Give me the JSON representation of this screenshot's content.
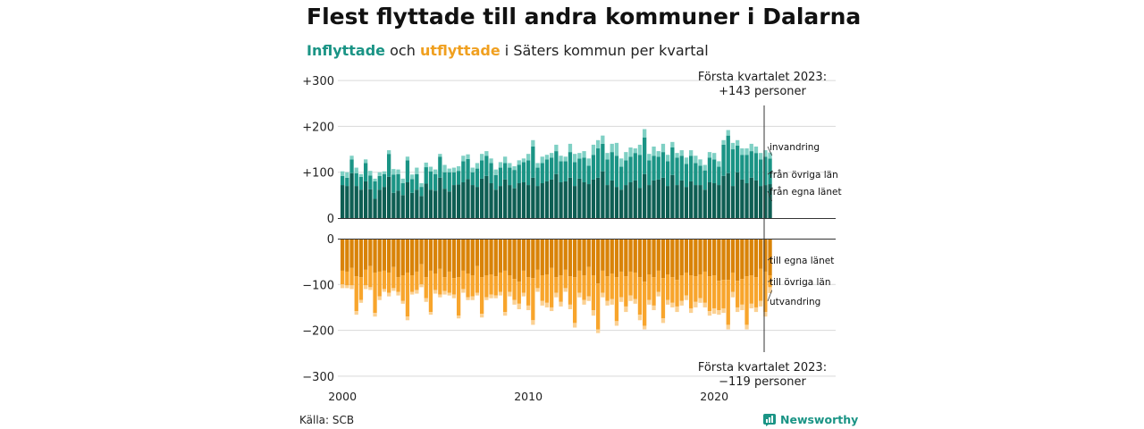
{
  "title": "Flest flyttade till andra kommuner i Dalarna",
  "subtitle": {
    "in_word": "Inflyttade",
    "and_word": "och",
    "out_word": "utflyttade",
    "rest": "i Säters kommun per kvartal"
  },
  "source": "Källa: SCB",
  "brand": "Newsworthy",
  "annotations": {
    "top_line1": "Första kvartalet 2023:",
    "top_line2": "+143 personer",
    "bottom_line1": "Första kvartalet 2023:",
    "bottom_line2": "−119 personer"
  },
  "colors": {
    "in_egna": "#0e5e53",
    "in_ovriga": "#1a9485",
    "in_invandring": "#7fd0c4",
    "out_egna": "#d98308",
    "out_ovriga": "#f8a52c",
    "out_utvandring": "#fbd193",
    "grid": "#d9d9d9",
    "axis": "#333333"
  },
  "chart_data": {
    "type": "bar",
    "stacked": true,
    "title": "Flest flyttade till andra kommuner i Dalarna",
    "subtitle": "Inflyttade och utflyttade i Säters kommun per kvartal",
    "x_axis": {
      "ticks": [
        "2000",
        "2010",
        "2020"
      ],
      "first_period": "2000 Q1",
      "last_period": "2023 Q1"
    },
    "y_axis": {
      "ticks_top": [
        "+300",
        "+200",
        "+100",
        "0"
      ],
      "ticks_bottom": [
        "0",
        "−100",
        "−200",
        "−300"
      ],
      "range_top": [
        0,
        300
      ],
      "range_bottom": [
        -300,
        0
      ]
    },
    "legend_inflyttade": [
      "invandring",
      "från övriga län",
      "från egna länet"
    ],
    "legend_utflyttade": [
      "till egna länet",
      "till övriga län",
      "utvandring"
    ],
    "inflyttade": {
      "egna_lanet": [
        72,
        70,
        98,
        70,
        62,
        80,
        63,
        42,
        62,
        68,
        90,
        55,
        60,
        50,
        78,
        55,
        62,
        48,
        75,
        62,
        60,
        88,
        64,
        58,
        72,
        73,
        78,
        85,
        72,
        68,
        86,
        92,
        76,
        62,
        70,
        84,
        72,
        65,
        76,
        78,
        72,
        88,
        70,
        76,
        80,
        84,
        96,
        78,
        80,
        88,
        70,
        86,
        78,
        74,
        84,
        88,
        102,
        72,
        82,
        68,
        62,
        72,
        78,
        82,
        66,
        96,
        72,
        82,
        84,
        88,
        70,
        94,
        72,
        82,
        68,
        80,
        72,
        72,
        62,
        78,
        76,
        72,
        92,
        98,
        70,
        100,
        84,
        76,
        88,
        82,
        70,
        72,
        74
      ],
      "ovriga_lan": [
        20,
        18,
        30,
        28,
        28,
        40,
        30,
        38,
        30,
        28,
        50,
        40,
        36,
        26,
        48,
        30,
        34,
        20,
        36,
        40,
        36,
        46,
        36,
        42,
        28,
        30,
        46,
        44,
        28,
        40,
        40,
        44,
        44,
        32,
        40,
        36,
        38,
        40,
        40,
        44,
        54,
        68,
        40,
        44,
        48,
        48,
        50,
        46,
        44,
        56,
        52,
        44,
        54,
        40,
        54,
        64,
        60,
        56,
        62,
        68,
        50,
        54,
        56,
        60,
        72,
        80,
        54,
        54,
        50,
        56,
        54,
        60,
        60,
        54,
        50,
        56,
        48,
        42,
        42,
        54,
        52,
        40,
        68,
        82,
        80,
        58,
        54,
        62,
        58,
        60,
        58,
        62,
        56
      ],
      "invandring": [
        10,
        12,
        8,
        12,
        6,
        8,
        10,
        6,
        8,
        6,
        8,
        12,
        10,
        10,
        8,
        10,
        14,
        8,
        10,
        10,
        10,
        6,
        16,
        8,
        10,
        10,
        12,
        10,
        10,
        12,
        14,
        10,
        10,
        12,
        12,
        14,
        10,
        8,
        10,
        8,
        14,
        14,
        10,
        14,
        10,
        10,
        14,
        12,
        10,
        18,
        18,
        12,
        14,
        16,
        22,
        18,
        18,
        14,
        18,
        28,
        18,
        18,
        20,
        10,
        22,
        18,
        14,
        20,
        12,
        18,
        14,
        12,
        10,
        12,
        14,
        12,
        16,
        14,
        12,
        12,
        14,
        12,
        10,
        12,
        14,
        12,
        14,
        14,
        16,
        14,
        14,
        14,
        13
      ]
    },
    "utflyttade": {
      "egna_lanet": [
        -70,
        -72,
        -64,
        -82,
        -84,
        -68,
        -60,
        -74,
        -72,
        -70,
        -74,
        -62,
        -84,
        -80,
        -74,
        -80,
        -72,
        -56,
        -84,
        -70,
        -76,
        -66,
        -84,
        -72,
        -86,
        -84,
        -70,
        -76,
        -80,
        -60,
        -84,
        -80,
        -78,
        -82,
        -74,
        -70,
        -80,
        -88,
        -94,
        -70,
        -84,
        -86,
        -68,
        -80,
        -78,
        -64,
        -84,
        -80,
        -68,
        -82,
        -84,
        -70,
        -80,
        -62,
        -80,
        -98,
        -70,
        -82,
        -76,
        -84,
        -72,
        -82,
        -72,
        -74,
        -84,
        -94,
        -78,
        -84,
        -70,
        -86,
        -78,
        -84,
        -90,
        -80,
        -74,
        -80,
        -82,
        -78,
        -72,
        -82,
        -80,
        -92,
        -90,
        -90,
        -74,
        -92,
        -88,
        -82,
        -80,
        -84,
        -66,
        -72,
        -80
      ],
      "ovriga_lan": [
        -30,
        -30,
        -38,
        -76,
        -50,
        -34,
        -46,
        -88,
        -54,
        -40,
        -44,
        -46,
        -32,
        -56,
        -96,
        -36,
        -40,
        -44,
        -46,
        -90,
        -36,
        -56,
        -30,
        -46,
        -36,
        -84,
        -40,
        -52,
        -46,
        -58,
        -80,
        -48,
        -44,
        -42,
        -42,
        -90,
        -36,
        -46,
        -48,
        -48,
        -62,
        -92,
        -40,
        -56,
        -62,
        -86,
        -34,
        -58,
        -40,
        -62,
        -100,
        -48,
        -54,
        -64,
        -76,
        -100,
        -48,
        -54,
        -56,
        -96,
        -56,
        -66,
        -52,
        -58,
        -82,
        -96,
        -56,
        -62,
        -46,
        -88,
        -56,
        -56,
        -58,
        -56,
        -50,
        -72,
        -56,
        -52,
        -68,
        -76,
        -72,
        -64,
        -62,
        -98,
        -42,
        -58,
        -56,
        -106,
        -62,
        -66,
        -70,
        -88,
        -26
      ],
      "utvandring": [
        -8,
        -6,
        -8,
        -8,
        -6,
        -8,
        -6,
        -8,
        -8,
        -6,
        -8,
        -6,
        -8,
        -6,
        -8,
        -6,
        -8,
        -6,
        -8,
        -6,
        -8,
        -6,
        -8,
        -6,
        -8,
        -6,
        -8,
        -6,
        -8,
        -6,
        -8,
        -6,
        -8,
        -6,
        -8,
        -8,
        -10,
        -10,
        -12,
        -8,
        -10,
        -10,
        -8,
        -10,
        -10,
        -8,
        -10,
        -10,
        -8,
        -10,
        -10,
        -10,
        -10,
        -10,
        -12,
        -8,
        -10,
        -10,
        -12,
        -10,
        -10,
        -12,
        -12,
        -10,
        -12,
        -8,
        -10,
        -10,
        -10,
        -10,
        -10,
        -10,
        -12,
        -10,
        -10,
        -10,
        -12,
        -10,
        -10,
        -10,
        -12,
        -10,
        -10,
        -10,
        -12,
        -10,
        -12,
        -10,
        -10,
        -10,
        -12,
        -10,
        -13
      ]
    }
  }
}
